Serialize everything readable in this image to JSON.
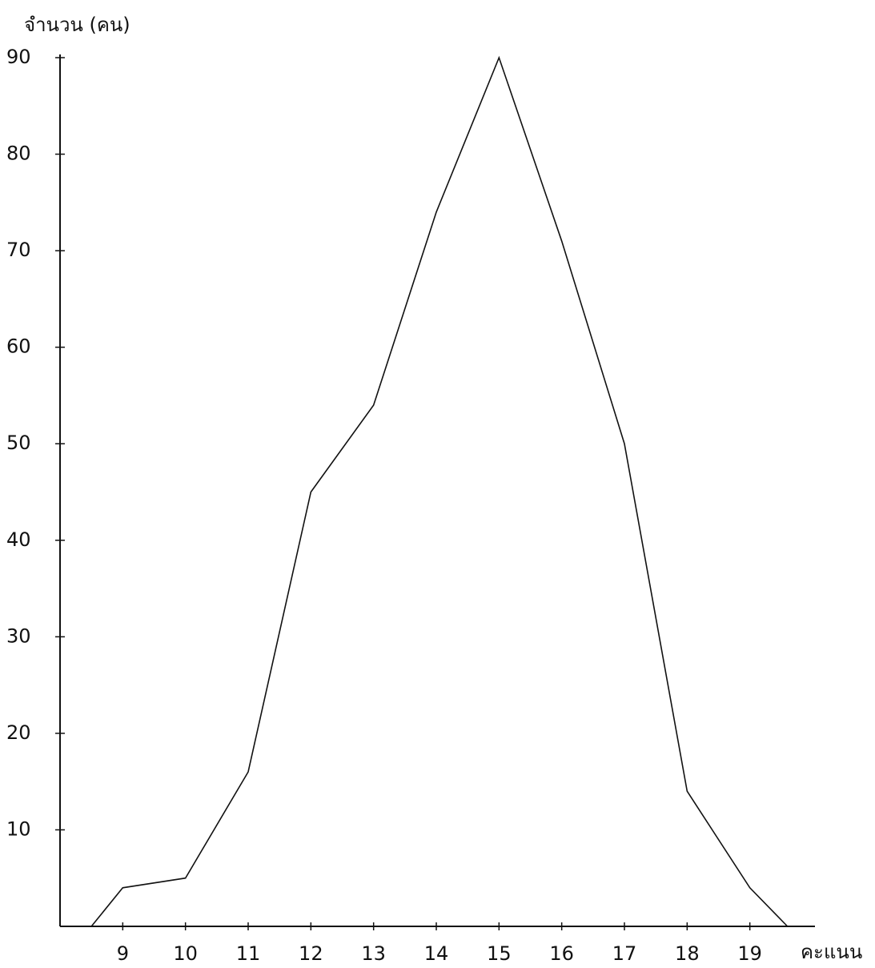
{
  "chart_data": {
    "type": "line",
    "y_label": "จำนวน (คน)",
    "x_label": "คะแนน",
    "x": [
      8.5,
      9,
      10,
      11,
      12,
      13,
      14,
      15,
      16,
      17,
      18,
      19,
      19.6
    ],
    "values": [
      0,
      4,
      5,
      16,
      45,
      54,
      74,
      90,
      71,
      50,
      14,
      4,
      0
    ],
    "color": "#111111",
    "xlim": [
      8,
      20
    ],
    "xticks": [
      9,
      10,
      11,
      12,
      13,
      14,
      15,
      16,
      17,
      18,
      19
    ],
    "ylim": [
      0,
      90
    ],
    "yticks": [
      10,
      20,
      30,
      40,
      50,
      60,
      70,
      80,
      90
    ]
  }
}
